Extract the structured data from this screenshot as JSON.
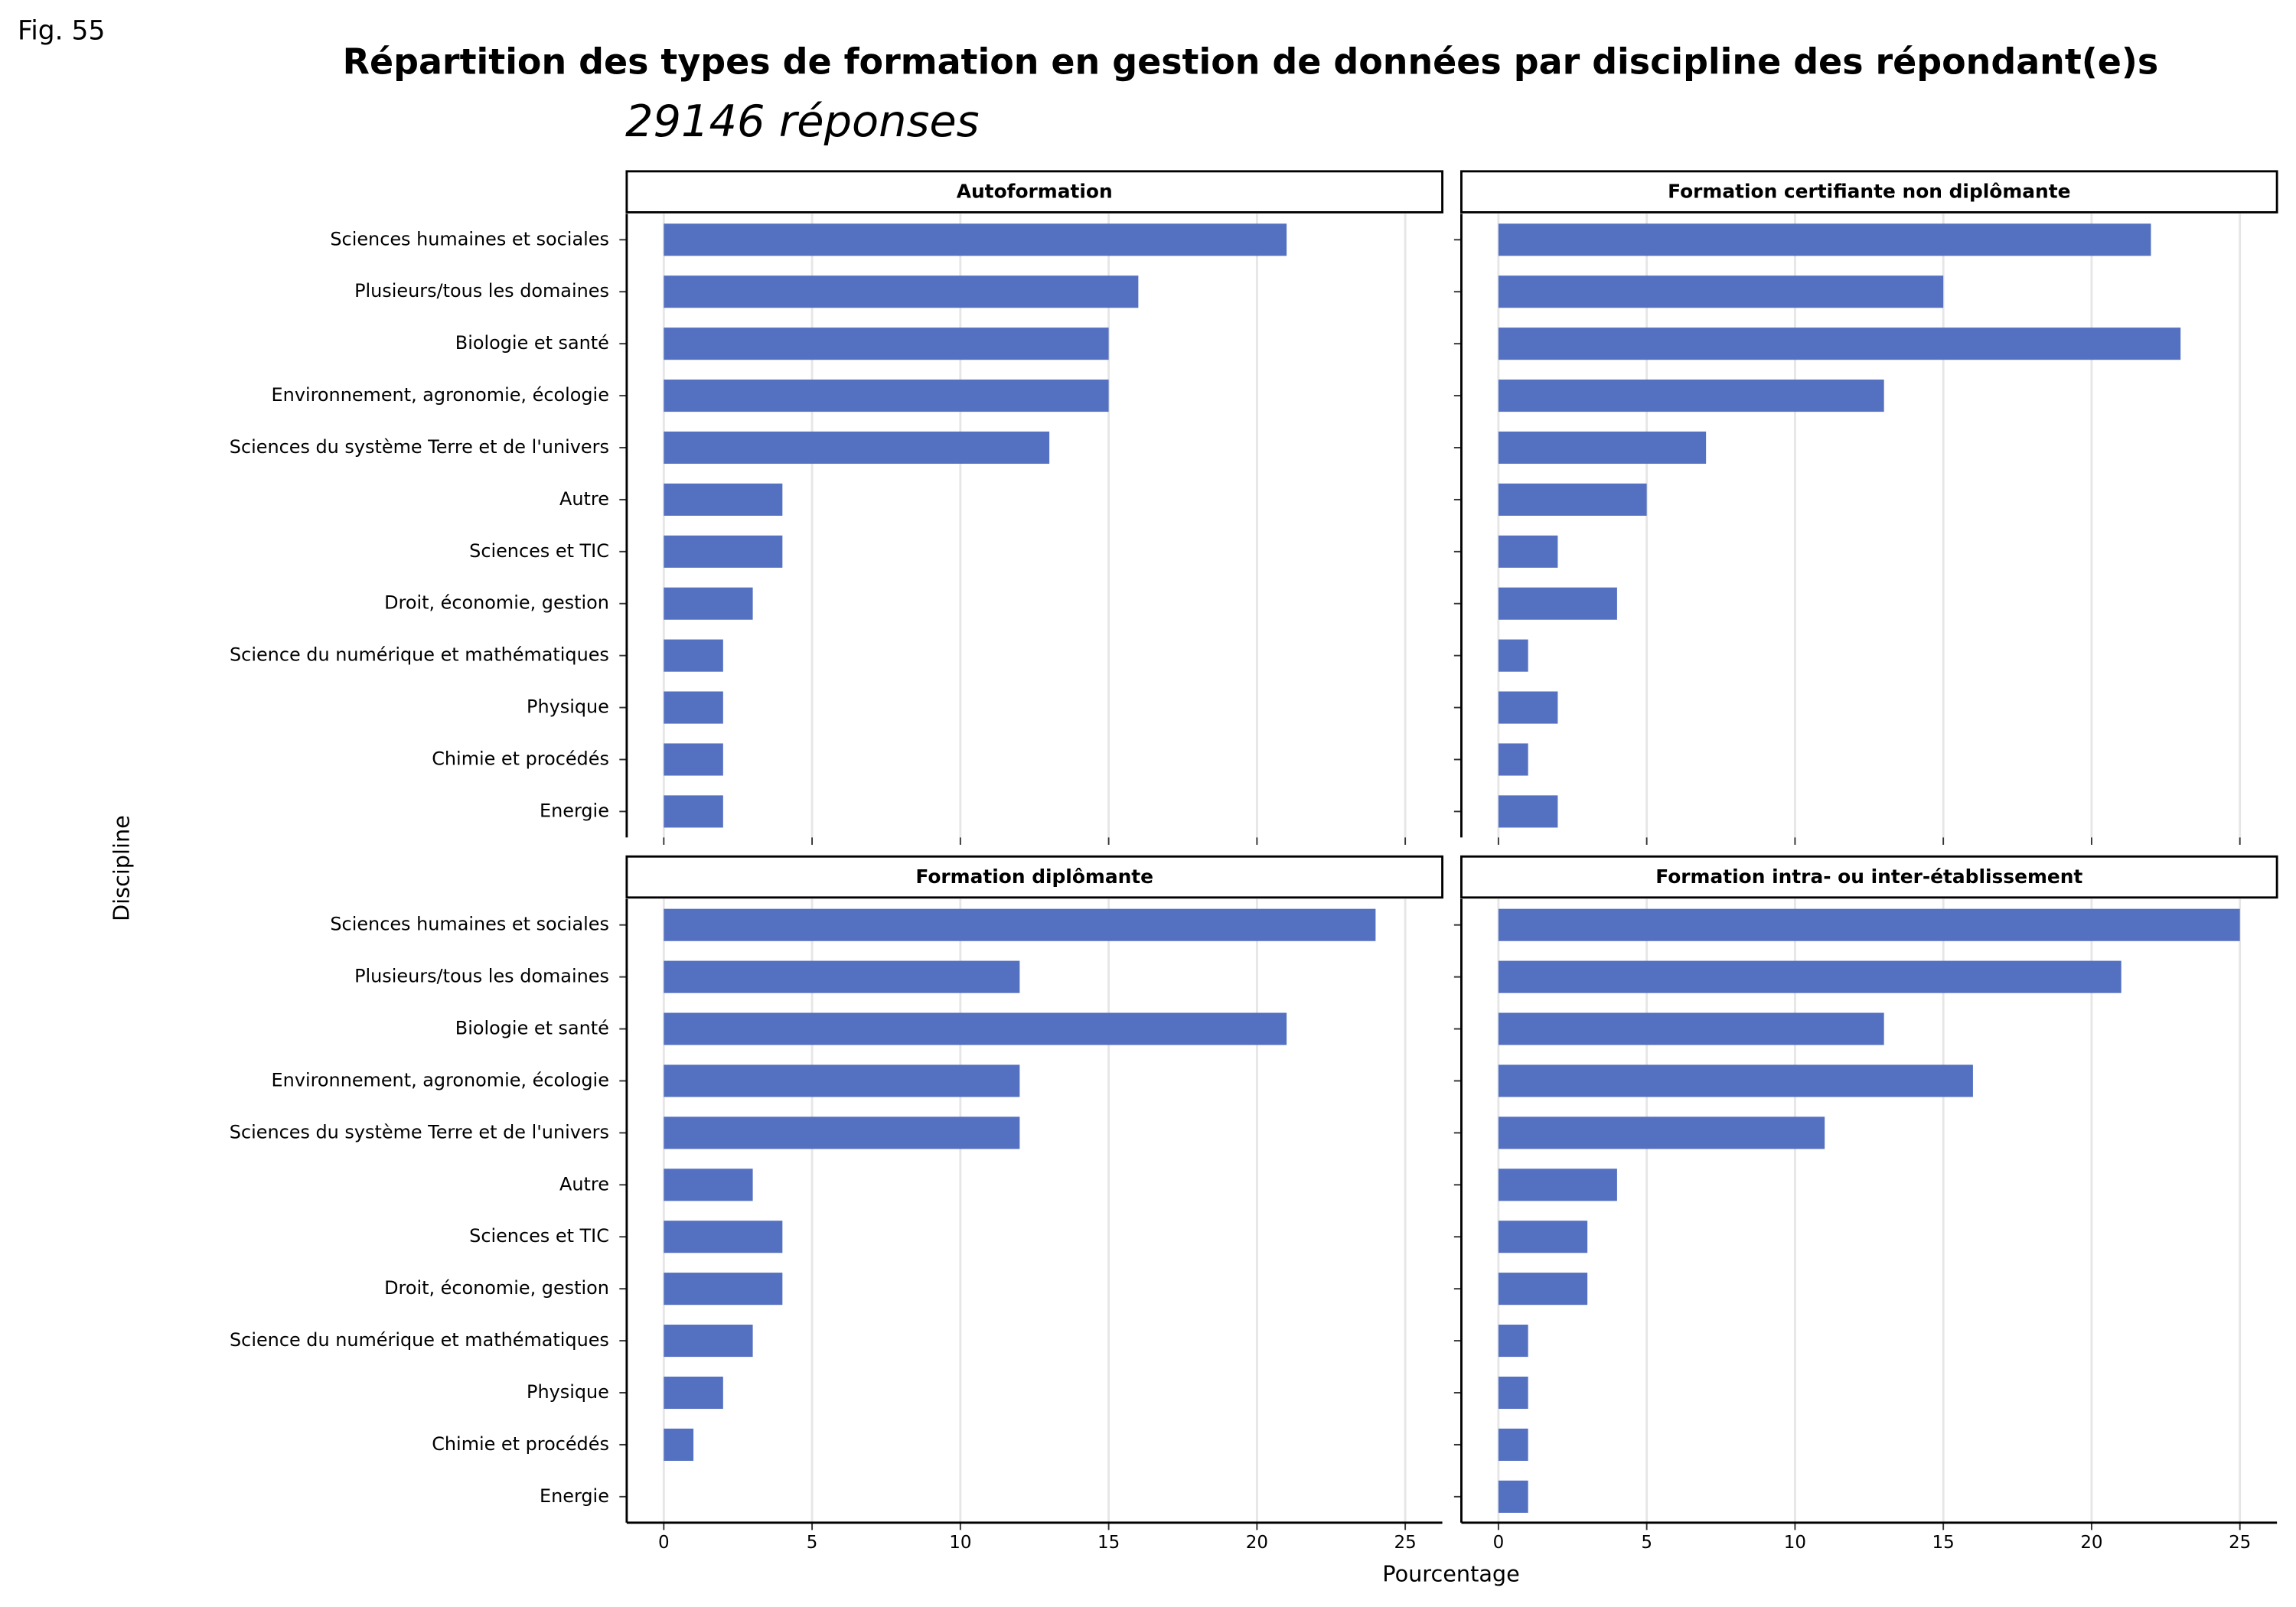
{
  "figure_label": "Fig. 55",
  "chart_data": {
    "type": "bar",
    "title": "Répartition des types de formation en gestion de données par discipline des répondant(e)s",
    "subtitle": "29146 réponses",
    "x_label": "Pourcentage",
    "y_label": "Discipline",
    "color": "#5470c0",
    "grid": true,
    "categories": [
      "Sciences humaines et sociales",
      "Plusieurs/tous les domaines",
      "Biologie et santé",
      "Environnement, agronomie, écologie",
      "Sciences du système Terre et de l'univers",
      "Autre",
      "Sciences et TIC",
      "Droit, économie, gestion",
      "Science du numérique et mathématiques",
      "Physique",
      "Chimie et procédés",
      "Energie"
    ],
    "xlim": [
      -1.25,
      26.25
    ],
    "xticks": [
      0,
      5,
      10,
      15,
      20,
      25
    ],
    "facets": [
      {
        "title": "Autoformation",
        "values": [
          21,
          16,
          15,
          15,
          13,
          4,
          4,
          3,
          2,
          2,
          2,
          2
        ]
      },
      {
        "title": "Formation certifiante non diplômante",
        "values": [
          22,
          15,
          23,
          13,
          7,
          5,
          2,
          4,
          1,
          2,
          1,
          2
        ]
      },
      {
        "title": "Formation diplômante",
        "values": [
          24,
          12,
          21,
          12,
          12,
          3,
          4,
          4,
          3,
          2,
          1,
          0
        ]
      },
      {
        "title": "Formation intra- ou inter-établissement",
        "values": [
          25,
          21,
          13,
          16,
          11,
          4,
          3,
          3,
          1,
          1,
          1,
          1
        ]
      }
    ]
  }
}
